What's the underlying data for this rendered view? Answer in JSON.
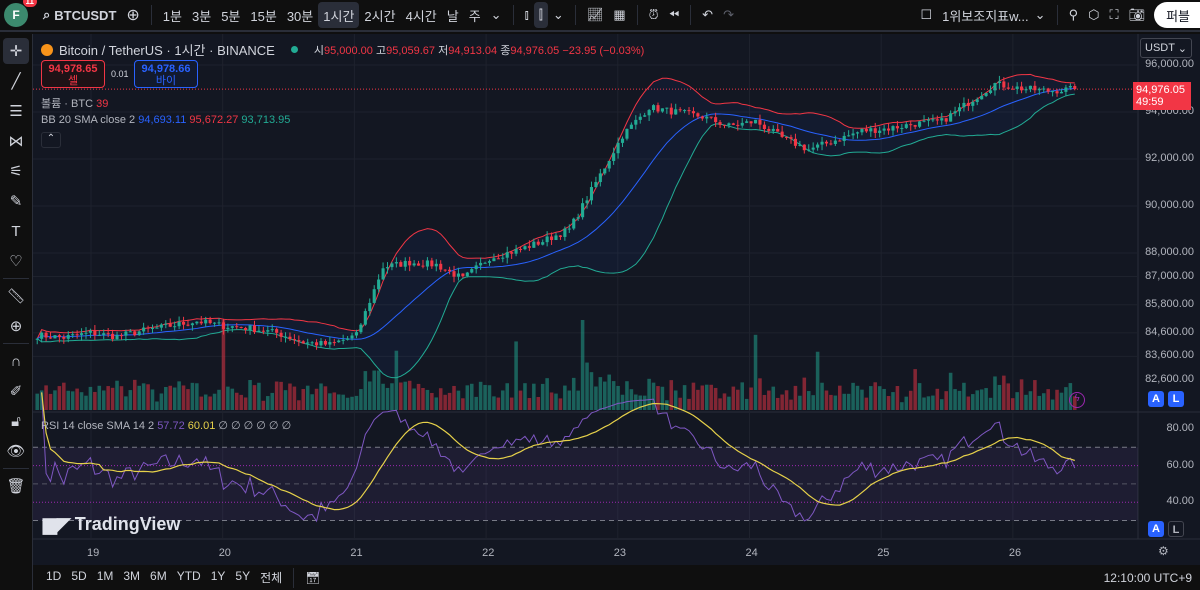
{
  "topbar": {
    "avatar": "F",
    "notifications": "11",
    "symbol": "BTCUSDT",
    "intervals": [
      "1분",
      "3분",
      "5분",
      "15분",
      "30분",
      "1시간",
      "2시간",
      "4시간",
      "날",
      "주"
    ],
    "active_interval": "1시간",
    "layout_name": "1위보조지표w...",
    "publish": "퍼블"
  },
  "legend": {
    "title": "Bitcoin / TetherUS · 1시간 · BINANCE",
    "o_lbl": "시",
    "o": "95,000.00",
    "h_lbl": "고",
    "h": "95,059.67",
    "l_lbl": "저",
    "l": "94,913.04",
    "c_lbl": "종",
    "c": "94,976.05",
    "chg": "−23.95 (−0.03%)",
    "sell_price": "94,978.65",
    "sell_lbl": "셀",
    "spread": "0.01",
    "buy_price": "94,978.66",
    "buy_lbl": "바이",
    "volume_lbl": "볼륨 · BTC",
    "volume_val": "39",
    "bb_lbl": "BB 20 SMA close 2",
    "bb_basis": "94,693.11",
    "bb_upper": "95,672.27",
    "bb_lower": "93,713.95",
    "rsi_lbl": "RSI 14 close SMA 14 2",
    "rsi_val": "57.72",
    "rsi_sma": "60.01",
    "rsi_extra": "∅ ∅ ∅ ∅ ∅ ∅"
  },
  "price_axis": {
    "currency": "USDT",
    "labels": [
      "96,000.00",
      "94,000.00",
      "92,000.00",
      "90,000.00",
      "88,000.00",
      "87,000.00",
      "85,800.00",
      "84,600.00",
      "83,600.00",
      "82,600.00"
    ],
    "last_price": "94,976.05",
    "countdown": "49:59"
  },
  "rsi_axis": {
    "labels": [
      "80.00",
      "60.00",
      "40.00"
    ]
  },
  "time_axis": {
    "labels": [
      "19",
      "20",
      "21",
      "22",
      "23",
      "24",
      "25",
      "26"
    ]
  },
  "bottombar": {
    "ranges": [
      "1D",
      "5D",
      "1M",
      "3M",
      "6M",
      "YTD",
      "1Y",
      "5Y",
      "전체"
    ],
    "time": "12:10:00 UTC+9"
  },
  "watermark": "TradingView",
  "colors": {
    "up": "#22ab94",
    "down": "#f23645",
    "bb_basis": "#2962ff",
    "bb_upper": "#f23645",
    "bb_lower": "#22ab94",
    "rsi": "#7e57c2",
    "rsi_sma": "#e6d14a"
  },
  "chart_data": {
    "type": "candlestick",
    "interval_hours": 1,
    "start": "18 14:00",
    "path_every_6h": [
      84500,
      84400,
      84600,
      84450,
      84700,
      84900,
      85100,
      84900,
      84800,
      84600,
      84200,
      84100,
      84500,
      87400,
      87600,
      87500,
      86900,
      87800,
      88100,
      88500,
      89000,
      91000,
      93000,
      94200,
      94000,
      93800,
      93400,
      93600,
      92900,
      92400,
      92800,
      93200,
      93300,
      93500,
      93600,
      94400,
      95200,
      95000,
      94900,
      94976
    ]
  }
}
